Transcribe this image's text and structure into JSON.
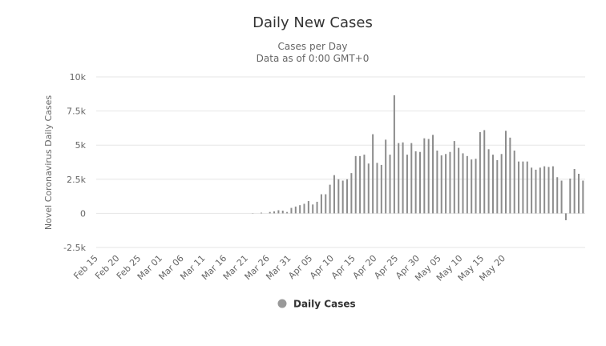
{
  "chart_data": {
    "type": "bar",
    "title": "Daily New Cases",
    "subtitle_line1": "Cases per Day",
    "subtitle_line2": "Data as of 0:00 GMT+0",
    "ylabel": "Novel Coronavirus Daily Cases",
    "xlabel": "",
    "ylim": [
      -2500,
      10000
    ],
    "yticks": [
      -2500,
      0,
      2500,
      5000,
      7500,
      10000
    ],
    "ytick_labels": [
      "-2.5k",
      "0",
      "2.5k",
      "5k",
      "7.5k",
      "10k"
    ],
    "xtick_labels": [
      "Feb 15",
      "Feb 20",
      "Feb 25",
      "Mar 01",
      "Mar 06",
      "Mar 11",
      "Mar 16",
      "Mar 21",
      "Mar 26",
      "Mar 31",
      "Apr 05",
      "Apr 10",
      "Apr 15",
      "Apr 20",
      "Apr 25",
      "Apr 30",
      "May 05",
      "May 10",
      "May 15",
      "May 20"
    ],
    "xtick_every_days": 5,
    "first_date": "Feb 15",
    "grid": true,
    "legend_position": "bottom-center",
    "colors": {
      "bar": "#8c8c8c",
      "grid": "#e6e6e6",
      "text": "#333333",
      "axis_label": "#666666"
    },
    "series": [
      {
        "name": "Daily Cases",
        "values": [
          0,
          0,
          0,
          0,
          0,
          0,
          0,
          0,
          0,
          0,
          0,
          0,
          0,
          0,
          0,
          0,
          0,
          0,
          0,
          0,
          0,
          0,
          0,
          0,
          0,
          0,
          0,
          0,
          0,
          0,
          0,
          0,
          0,
          0,
          0,
          0,
          20,
          0,
          50,
          0,
          100,
          150,
          230,
          200,
          100,
          400,
          500,
          600,
          700,
          900,
          650,
          850,
          1400,
          1400,
          2100,
          2800,
          2500,
          2400,
          2500,
          2950,
          4200,
          4200,
          4300,
          3650,
          5800,
          3700,
          3550,
          5400,
          4300,
          8650,
          5150,
          5200,
          4300,
          5150,
          4550,
          4500,
          5500,
          5450,
          5750,
          4600,
          4250,
          4350,
          4500,
          5300,
          4800,
          4400,
          4200,
          3950,
          4000,
          5950,
          6100,
          4700,
          4300,
          3900,
          4350,
          6050,
          5550,
          4600,
          3800,
          3800,
          3800,
          3350,
          3200,
          3350,
          3450,
          3400,
          3450,
          2650,
          2400,
          -500,
          2550,
          3250,
          2900,
          2400
        ]
      }
    ]
  }
}
